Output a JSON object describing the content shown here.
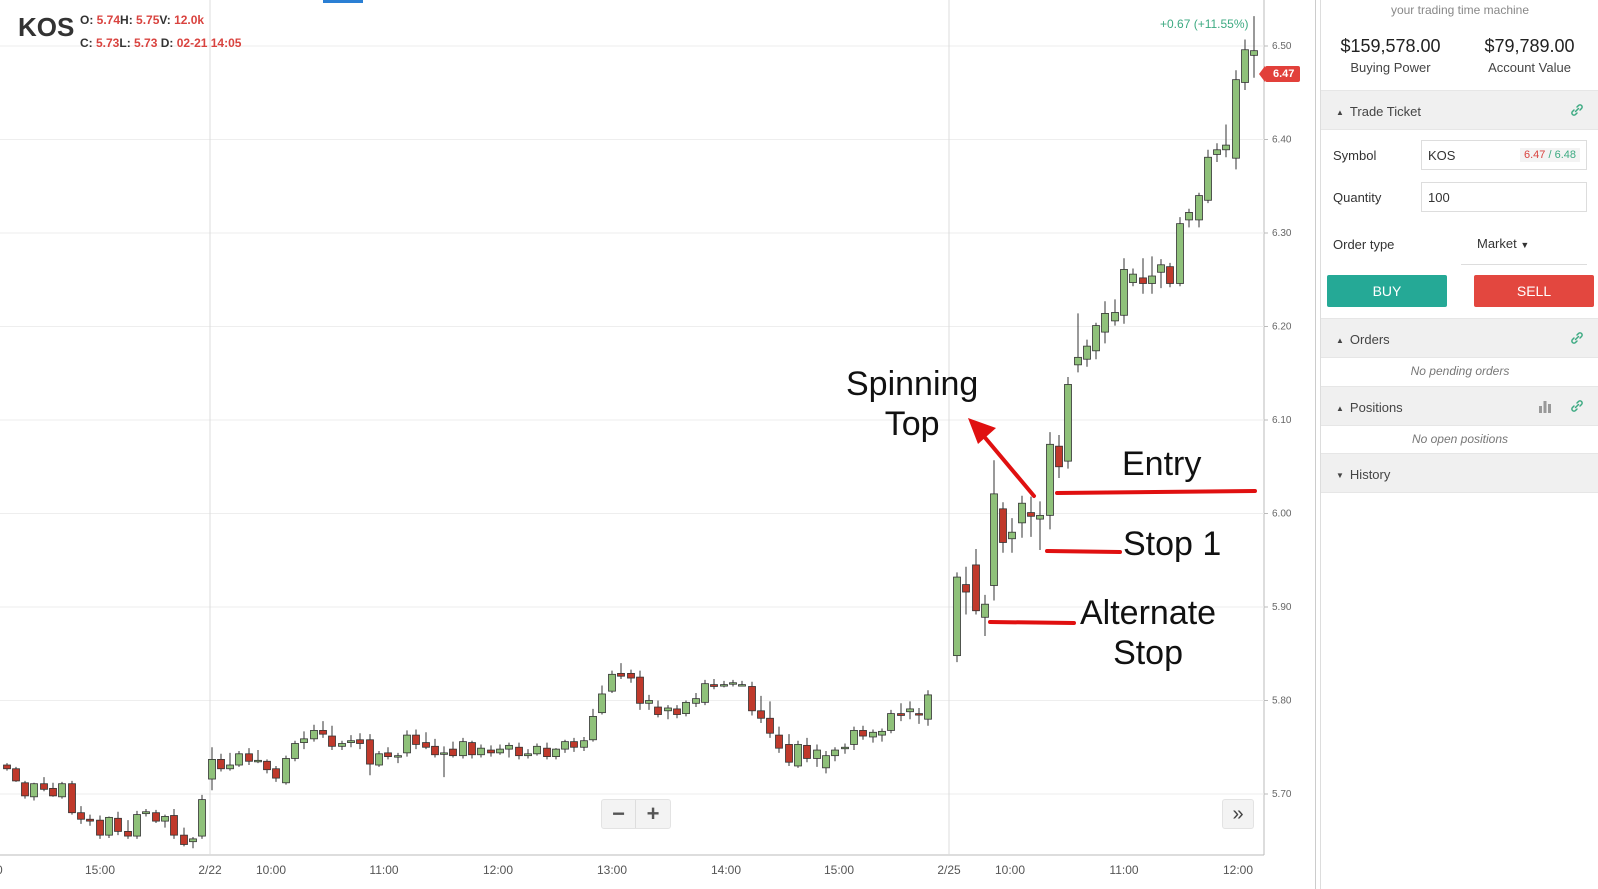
{
  "chart": {
    "symbol": "KOS",
    "ohlc": {
      "o": "5.74",
      "h": "5.75",
      "v": "12.0k",
      "c": "5.73",
      "l": "5.73",
      "d": "02-21 14:05"
    },
    "change": "+0.67 (+11.55%)",
    "last_price": "6.47",
    "y_ticks": [
      "6.50",
      "6.40",
      "6.30",
      "6.20",
      "6.10",
      "6.00",
      "5.90",
      "5.80",
      "5.70"
    ],
    "x_ticks": [
      "15:00",
      "2/22",
      "10:00",
      "11:00",
      "12:00",
      "13:00",
      "14:00",
      "15:00",
      "2/25",
      "10:00",
      "11:00",
      "12:00"
    ],
    "colors": {
      "up": "#8fc17a",
      "down": "#c0392b",
      "wick": "#333333",
      "annotation": "#e01010"
    },
    "zoom_out_label": "−",
    "zoom_in_label": "+",
    "forward_label": "»",
    "annotations": {
      "spinning_top": [
        "Spinning",
        "Top"
      ],
      "entry": "Entry",
      "stop1": "Stop 1",
      "alt_stop": [
        "Alternate",
        "Stop"
      ]
    }
  },
  "sidebar": {
    "tagline": "your trading time machine",
    "buying_power": {
      "value": "$159,578.00",
      "label": "Buying Power"
    },
    "account_value": {
      "value": "$79,789.00",
      "label": "Account Value"
    },
    "trade_ticket": {
      "title": "Trade Ticket",
      "symbol_label": "Symbol",
      "symbol_value": "KOS",
      "bid": "6.47",
      "ask": "6.48",
      "quantity_label": "Quantity",
      "quantity_value": "100",
      "order_type_label": "Order type",
      "order_type_value": "Market",
      "buy_label": "BUY",
      "sell_label": "SELL"
    },
    "orders": {
      "title": "Orders",
      "empty": "No pending orders"
    },
    "positions": {
      "title": "Positions",
      "empty": "No open positions"
    },
    "history": {
      "title": "History"
    }
  }
}
